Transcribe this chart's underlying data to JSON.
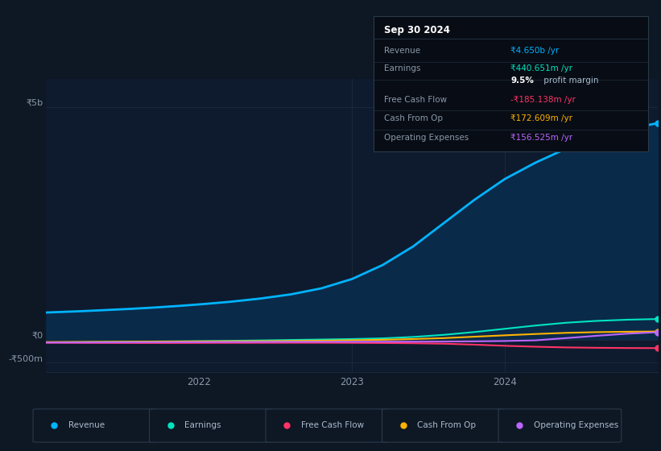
{
  "background_color": "#0e1724",
  "plot_bg_color": "#0e1b2e",
  "grid_color": "#1a2a3a",
  "y_ticks_labels": [
    "₹5b",
    "₹0",
    "-₹500m"
  ],
  "y_ticks_values": [
    5000000000,
    0,
    -500000000
  ],
  "x_tick_labels": [
    "2022",
    "2023",
    "2024"
  ],
  "x_tick_positions": [
    25,
    50,
    75
  ],
  "ylim": [
    -700000000,
    5600000000
  ],
  "xlim": [
    0,
    100
  ],
  "revenue_color": "#00b4ff",
  "earnings_color": "#00e5c0",
  "fcf_color": "#ff3366",
  "cashfromop_color": "#ffb300",
  "opex_color": "#bb66ff",
  "fill_color": "#0a2a4a",
  "vline_positions": [
    50,
    75
  ],
  "legend_items": [
    {
      "label": "Revenue",
      "color": "#00b4ff"
    },
    {
      "label": "Earnings",
      "color": "#00e5c0"
    },
    {
      "label": "Free Cash Flow",
      "color": "#ff3366"
    },
    {
      "label": "Cash From Op",
      "color": "#ffb300"
    },
    {
      "label": "Operating Expenses",
      "color": "#bb66ff"
    }
  ],
  "info_box": {
    "title": "Sep 30 2024",
    "rows": [
      {
        "label": "Revenue",
        "value": "₹4.650b /yr",
        "value_color": "#00b4ff"
      },
      {
        "label": "Earnings",
        "value": "₹440.651m /yr",
        "value_color": "#00e5c0"
      },
      {
        "label": "",
        "value": "9.5% profit margin",
        "value_color": "#cccccc",
        "bold_part": "9.5%"
      },
      {
        "label": "Free Cash Flow",
        "value": "-₹185.138m /yr",
        "value_color": "#ff3366"
      },
      {
        "label": "Cash From Op",
        "value": "₹172.609m /yr",
        "value_color": "#ffb300"
      },
      {
        "label": "Operating Expenses",
        "value": "₹156.525m /yr",
        "value_color": "#bb66ff"
      }
    ]
  },
  "revenue_x": [
    0,
    3,
    6,
    10,
    14,
    18,
    22,
    26,
    30,
    35,
    40,
    45,
    50,
    55,
    60,
    65,
    70,
    75,
    80,
    85,
    90,
    95,
    100
  ],
  "revenue_y": [
    580000000,
    595000000,
    610000000,
    635000000,
    660000000,
    690000000,
    725000000,
    765000000,
    810000000,
    880000000,
    970000000,
    1100000000,
    1300000000,
    1600000000,
    2000000000,
    2500000000,
    3000000000,
    3450000000,
    3800000000,
    4100000000,
    4350000000,
    4520000000,
    4650000000
  ],
  "earnings_x": [
    0,
    5,
    10,
    15,
    20,
    25,
    30,
    35,
    40,
    45,
    50,
    55,
    60,
    65,
    70,
    75,
    80,
    85,
    90,
    95,
    100
  ],
  "earnings_y": [
    -60000000,
    -55000000,
    -50000000,
    -45000000,
    -40000000,
    -35000000,
    -28000000,
    -20000000,
    -10000000,
    0,
    10000000,
    25000000,
    55000000,
    100000000,
    160000000,
    230000000,
    300000000,
    360000000,
    400000000,
    425000000,
    440651000
  ],
  "fcf_x": [
    0,
    5,
    10,
    15,
    20,
    25,
    30,
    35,
    40,
    45,
    50,
    55,
    60,
    65,
    70,
    75,
    80,
    85,
    90,
    95,
    100
  ],
  "fcf_y": [
    -70000000,
    -72000000,
    -74000000,
    -75000000,
    -75000000,
    -73000000,
    -72000000,
    -71000000,
    -70000000,
    -70000000,
    -72000000,
    -75000000,
    -80000000,
    -90000000,
    -110000000,
    -135000000,
    -155000000,
    -170000000,
    -178000000,
    -183000000,
    -185138000
  ],
  "cashfromop_x": [
    0,
    5,
    10,
    15,
    20,
    25,
    30,
    35,
    40,
    45,
    50,
    55,
    60,
    65,
    70,
    75,
    80,
    85,
    90,
    95,
    100
  ],
  "cashfromop_y": [
    -55000000,
    -53000000,
    -50000000,
    -47000000,
    -44000000,
    -41000000,
    -38000000,
    -35000000,
    -30000000,
    -24000000,
    -16000000,
    -5000000,
    10000000,
    30000000,
    60000000,
    90000000,
    118000000,
    143000000,
    158000000,
    167000000,
    172609000
  ],
  "opex_x": [
    0,
    5,
    10,
    15,
    20,
    25,
    30,
    35,
    40,
    45,
    50,
    55,
    60,
    65,
    70,
    75,
    80,
    85,
    90,
    95,
    100
  ],
  "opex_y": [
    -65000000,
    -64000000,
    -62000000,
    -60000000,
    -58000000,
    -56000000,
    -54000000,
    -52000000,
    -50000000,
    -49000000,
    -48000000,
    -47000000,
    -46000000,
    -44000000,
    -40000000,
    -32000000,
    -18000000,
    30000000,
    80000000,
    125000000,
    156525000
  ]
}
